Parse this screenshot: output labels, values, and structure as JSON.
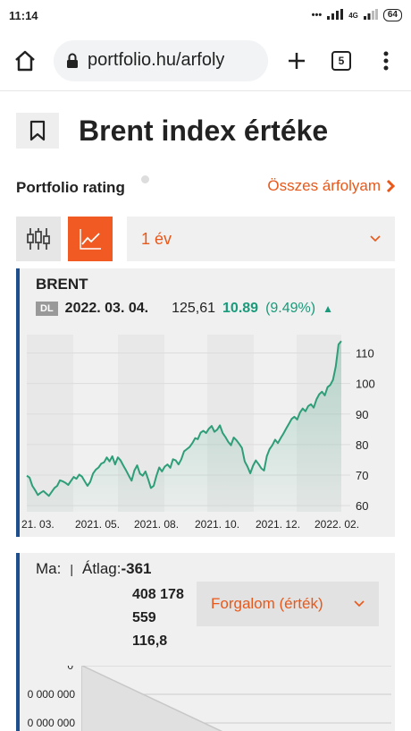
{
  "status": {
    "time": "11:14",
    "signal_text": "4G",
    "battery": "64"
  },
  "browser": {
    "url": "portfolio.hu/arfoly",
    "tab_count": "5"
  },
  "page": {
    "title": "Brent index értéke"
  },
  "rating": {
    "label": "Portfolio rating",
    "all_quotes_link": "Összes árfolyam"
  },
  "controls": {
    "period_selected": "1 év"
  },
  "quote": {
    "name": "BRENT",
    "badge": "DL",
    "date": "2022. 03. 04.",
    "price": "125,61",
    "change": "10.89",
    "change_pct": "(9.49%)",
    "direction": "▲"
  },
  "colors": {
    "accent": "#f15a22",
    "line": "#2e9e78",
    "border": "#1f4e8c"
  },
  "chart_data": {
    "type": "area",
    "x_ticks": [
      "21. 03.",
      "2021. 05.",
      "2021. 08.",
      "2021. 10.",
      "2021. 12.",
      "2022. 02."
    ],
    "y_ticks": [
      "110",
      "100",
      "90",
      "80",
      "70",
      "60"
    ],
    "ylim": [
      58,
      116
    ],
    "values": [
      69.8,
      69.2,
      66.5,
      65.1,
      63.5,
      64.2,
      64.8,
      64.0,
      63.2,
      64.5,
      65.8,
      66.5,
      68.3,
      68.0,
      67.5,
      66.8,
      68.1,
      69.4,
      68.8,
      70.2,
      69.5,
      68.0,
      66.5,
      67.8,
      70.5,
      71.8,
      72.5,
      73.8,
      74.2,
      75.8,
      74.5,
      76.2,
      73.5,
      75.8,
      74.8,
      73.1,
      71.5,
      69.8,
      68.2,
      71.5,
      73.2,
      70.5,
      69.8,
      71.2,
      68.6,
      65.8,
      66.5,
      69.8,
      72.5,
      71.2,
      72.8,
      73.5,
      72.4,
      75.2,
      74.8,
      73.5,
      75.2,
      77.8,
      78.5,
      79.2,
      80.5,
      82.1,
      81.8,
      83.9,
      84.5,
      83.8,
      85.2,
      86.1,
      84.2,
      84.9,
      86.3,
      83.8,
      82.5,
      80.9,
      79.8,
      82.3,
      81.4,
      80.2,
      78.9,
      74.5,
      72.8,
      70.6,
      73.1,
      74.8,
      73.6,
      72.2,
      71.5,
      76.2,
      78.5,
      79.8,
      81.6,
      80.5,
      82.1,
      83.6,
      85.2,
      86.8,
      88.4,
      89.1,
      88.2,
      90.5,
      91.8,
      90.9,
      92.6,
      93.2,
      92.1,
      94.8,
      96.5,
      97.3,
      96.1,
      98.8,
      99.5,
      101.2,
      105.6,
      112.8,
      113.9
    ]
  },
  "volume": {
    "today_label": "Ma:",
    "avg_label": "Átlag:",
    "avg_value": "-361",
    "values_lines": [
      "408 178",
      "559",
      "116,8"
    ],
    "select_label": "Forgalom (érték)",
    "y_ticks": [
      "0",
      "0 000 000",
      "0 000 000"
    ]
  }
}
